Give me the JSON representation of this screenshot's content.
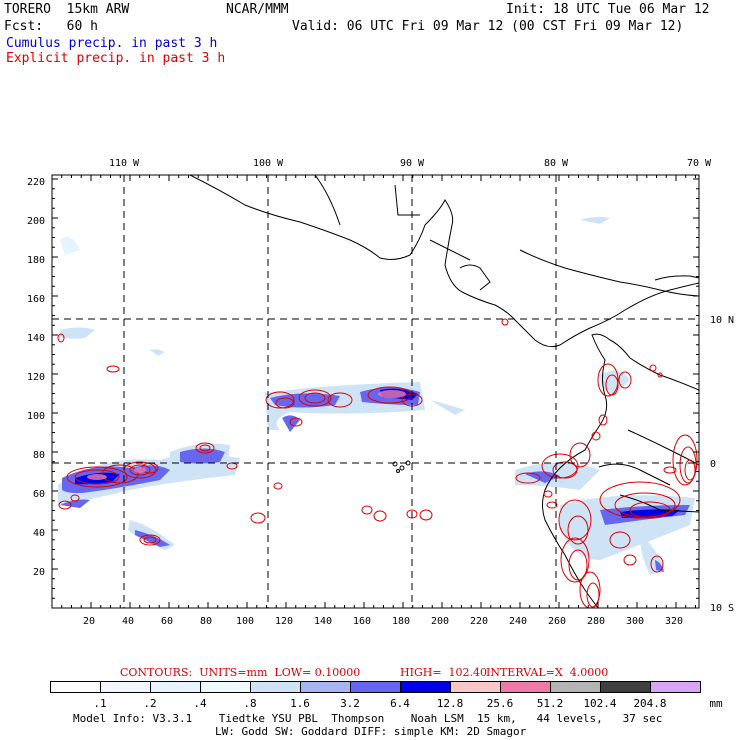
{
  "header": {
    "model": "TORERO  15km ARW",
    "org": "NCAR/MMM",
    "init": "Init: 18 UTC Tue 06 Mar 12",
    "fcst": "Fcst:   60 h",
    "valid": "Valid: 06 UTC Fri 09 Mar 12 (00 CST Fri 09 Mar 12)",
    "line_blue": "Cumulus precip. in past 3 h",
    "line_red": "Explicit precip. in past 3 h"
  },
  "top_axis": [
    "110 W",
    "100 W",
    "90 W",
    "80 W",
    "70 W"
  ],
  "right_axis": [
    "10 N",
    "0",
    "10 S"
  ],
  "left_axis": [
    "220",
    "200",
    "180",
    "160",
    "140",
    "120",
    "100",
    "80",
    "60",
    "40",
    "20"
  ],
  "bottom_axis": [
    "20",
    "40",
    "60",
    "80",
    "100",
    "120",
    "140",
    "160",
    "180",
    "200",
    "220",
    "240",
    "260",
    "280",
    "300",
    "320"
  ],
  "contours": {
    "label": "CONTOURS:  UNITS=mm  LOW= 0.10000",
    "high": "HIGH=  102.40",
    "interval": "INTERVAL=X  4.0000"
  },
  "colorbar": {
    "labels": [
      ".1",
      ".2",
      ".4",
      ".8",
      "1.6",
      "3.2",
      "6.4",
      "12.8",
      "25.6",
      "51.2",
      "102.4",
      "204.8"
    ],
    "unit": "mm",
    "colors": [
      "#ffffff",
      "#f2f7ff",
      "#e6f4ff",
      "#eefcff",
      "#cfe3f7",
      "#a6b4f2",
      "#6666ee",
      "#0000e6",
      "#f8c8c8",
      "#ee7aa8",
      "#b4b4b4",
      "#404040",
      "#d8a4f6"
    ]
  },
  "footer": {
    "line1": "Model Info: V3.3.1    Tiedtke YSU PBL  Thompson    Noah LSM  15 km,   44 levels,   37 sec",
    "line2": "LW: Godd SW: Goddard DIFF: simple KM: 2D Smagor"
  }
}
